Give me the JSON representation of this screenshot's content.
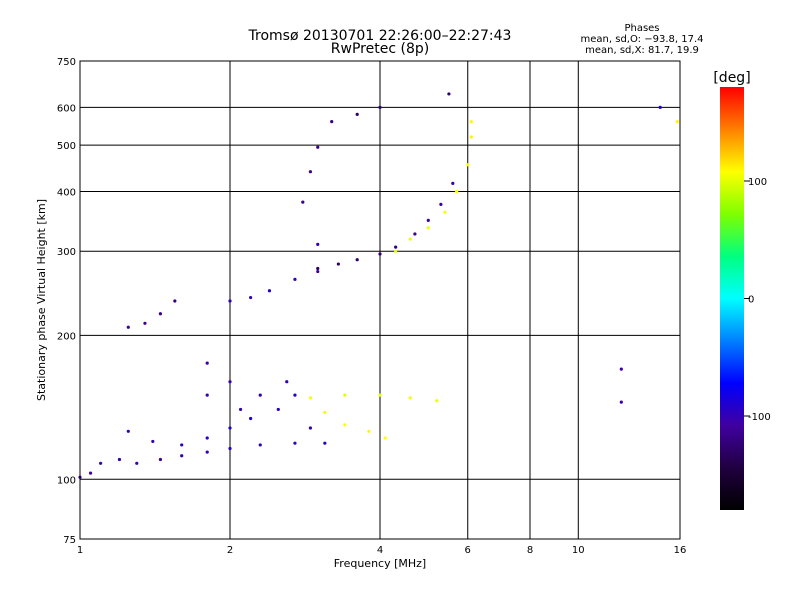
{
  "chart_data": {
    "type": "scatter",
    "title": "Tromsø 20130701 22:26:00–22:27:43",
    "subtitle": "RwPretec (8p)",
    "xlabel": "Frequency [MHz]",
    "ylabel": "Stationary phase Virtual Height [km]",
    "x_scale": "log",
    "y_scale": "log",
    "xlim": [
      1,
      16
    ],
    "ylim": [
      75,
      750
    ],
    "grid": true,
    "x_ticks": [
      1,
      2,
      4,
      6,
      8,
      10,
      16
    ],
    "y_ticks": [
      75,
      100,
      200,
      300,
      400,
      500,
      600,
      750
    ],
    "phase_box": {
      "title": "Phases",
      "line1": "mean, sd,O: −93.8, 17.4",
      "line2": "mean, sd,X:  81.7, 19.9"
    },
    "colorbar": {
      "label": "[deg]",
      "range": [
        -180,
        180
      ],
      "ticks": [
        100,
        0,
        -100
      ],
      "colors": [
        "#ff0000",
        "#ff8000",
        "#ffff00",
        "#80ff00",
        "#00ff80",
        "#00ffff",
        "#0080ff",
        "#0000ff",
        "#4000a0",
        "#200040",
        "#000000"
      ]
    },
    "series": [
      {
        "points": [
          [
            1.0,
            101,
            -105
          ],
          [
            1.05,
            103,
            -108
          ],
          [
            1.1,
            108,
            -104
          ],
          [
            1.2,
            110,
            -100
          ],
          [
            1.3,
            108,
            -102
          ],
          [
            1.45,
            110,
            -104
          ],
          [
            1.6,
            112,
            -102
          ],
          [
            1.8,
            114,
            -100
          ],
          [
            2.0,
            116,
            -98
          ],
          [
            2.3,
            118,
            -96
          ],
          [
            2.7,
            119,
            -95
          ],
          [
            3.1,
            119,
            -94
          ]
        ]
      },
      {
        "points": [
          [
            1.25,
            126,
            -100
          ],
          [
            1.4,
            120,
            -100
          ],
          [
            1.6,
            118,
            -98
          ],
          [
            1.8,
            122,
            -96
          ],
          [
            2.0,
            128,
            -92
          ],
          [
            2.2,
            134,
            -90
          ],
          [
            2.5,
            140,
            -90
          ],
          [
            2.7,
            150,
            -92
          ]
        ]
      },
      {
        "points": [
          [
            1.25,
            208,
            -110
          ],
          [
            1.35,
            212,
            -112
          ],
          [
            1.45,
            222,
            -118
          ],
          [
            1.55,
            236,
            -120
          ]
        ]
      },
      {
        "points": [
          [
            2.0,
            236,
            -100
          ],
          [
            2.2,
            240,
            -98
          ],
          [
            2.4,
            248,
            -96
          ],
          [
            2.7,
            262,
            -100
          ],
          [
            3.0,
            272,
            -110
          ],
          [
            3.0,
            310,
            -100
          ]
        ]
      },
      {
        "points": [
          [
            3.0,
            276,
            -130
          ],
          [
            3.3,
            282,
            -130
          ],
          [
            3.6,
            288,
            -130
          ],
          [
            4.0,
            296,
            -125
          ],
          [
            4.3,
            306,
            -120
          ],
          [
            4.7,
            326,
            -115
          ],
          [
            5.0,
            348,
            -110
          ],
          [
            5.3,
            376,
            -105
          ],
          [
            5.6,
            416,
            -100
          ]
        ]
      },
      {
        "points": [
          [
            2.8,
            380,
            -115
          ],
          [
            2.9,
            440,
            -110
          ],
          [
            3.0,
            495,
            -115
          ],
          [
            3.2,
            560,
            -120
          ],
          [
            3.6,
            580,
            -125
          ],
          [
            4.0,
            600,
            -130
          ],
          [
            5.5,
            640,
            -125
          ]
        ]
      },
      {
        "points": [
          [
            4.3,
            300,
            100
          ],
          [
            4.6,
            318,
            102
          ],
          [
            5.0,
            336,
            104
          ],
          [
            5.4,
            362,
            106
          ],
          [
            5.7,
            400,
            108
          ],
          [
            6.0,
            455,
            110
          ],
          [
            6.1,
            520,
            112
          ],
          [
            6.1,
            560,
            110
          ]
        ]
      },
      {
        "points": [
          [
            1.8,
            150,
            -105
          ],
          [
            1.8,
            175,
            -110
          ],
          [
            2.0,
            160,
            -105
          ],
          [
            2.1,
            140,
            -100
          ],
          [
            2.3,
            150,
            -98
          ],
          [
            2.6,
            160,
            -98
          ],
          [
            2.9,
            128,
            -100
          ]
        ]
      },
      {
        "points": [
          [
            2.9,
            148,
            105
          ],
          [
            3.1,
            138,
            105
          ],
          [
            3.4,
            130,
            108
          ],
          [
            3.8,
            126,
            110
          ],
          [
            4.1,
            122,
            108
          ]
        ]
      },
      {
        "points": [
          [
            3.4,
            150,
            100
          ],
          [
            4.0,
            150,
            102
          ],
          [
            4.6,
            148,
            105
          ],
          [
            5.2,
            146,
            103
          ]
        ]
      },
      {
        "points": [
          [
            12.2,
            170,
            -105
          ],
          [
            12.2,
            145,
            -105
          ],
          [
            14.6,
            600,
            -90
          ],
          [
            15.8,
            560,
            110
          ]
        ]
      }
    ]
  }
}
